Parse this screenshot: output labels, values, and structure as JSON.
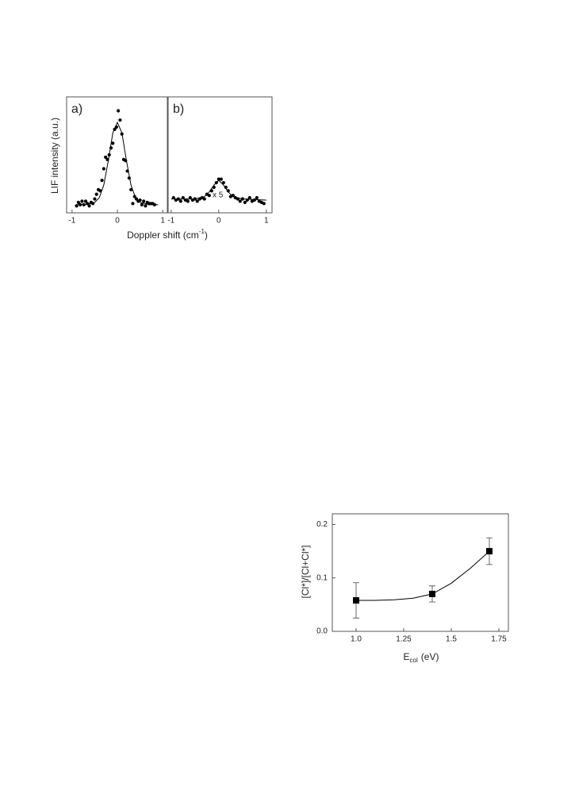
{
  "chart_data": [
    {
      "type": "scatter",
      "panel_label": "a)",
      "ylabel": "LIF intensity (a.u.)",
      "xlabel": [
        "Doppler shift (cm",
        "-1",
        ")"
      ],
      "xlim": [
        -1.12,
        1.12
      ],
      "ylim": [
        0,
        1
      ],
      "xticks": [
        -1,
        0,
        1
      ],
      "series": [
        {
          "style": "points",
          "marker": "circle",
          "color": "#000000",
          "x": [
            -0.9,
            -0.86,
            -0.82,
            -0.78,
            -0.74,
            -0.7,
            -0.66,
            -0.62,
            -0.58,
            -0.54,
            -0.5,
            -0.46,
            -0.42,
            -0.38,
            -0.34,
            -0.3,
            -0.26,
            -0.22,
            -0.18,
            -0.14,
            -0.1,
            -0.06,
            -0.02,
            0.02,
            0.06,
            0.1,
            0.14,
            0.18,
            0.22,
            0.26,
            0.3,
            0.34,
            0.38,
            0.42,
            0.46,
            0.5,
            0.54,
            0.58,
            0.62,
            0.66,
            0.7,
            0.74,
            0.78,
            0.82
          ],
          "values": [
            0.06,
            0.09,
            0.07,
            0.1,
            0.07,
            0.1,
            0.08,
            0.06,
            0.09,
            0.08,
            0.12,
            0.16,
            0.2,
            0.19,
            0.28,
            0.38,
            0.48,
            0.46,
            0.5,
            0.56,
            0.6,
            0.72,
            0.74,
            0.88,
            0.8,
            0.68,
            0.46,
            0.45,
            0.36,
            0.3,
            0.2,
            0.08,
            0.14,
            0.12,
            0.1,
            0.11,
            0.07,
            0.1,
            0.06,
            0.09,
            0.08,
            0.08,
            0.08,
            0.07
          ]
        },
        {
          "style": "line",
          "color": "#000000",
          "x": [
            -0.9,
            -0.7,
            -0.5,
            -0.4,
            -0.3,
            -0.2,
            -0.1,
            0,
            0.1,
            0.2,
            0.3,
            0.4,
            0.5,
            0.7,
            0.9
          ],
          "values": [
            0.07,
            0.07,
            0.09,
            0.13,
            0.24,
            0.45,
            0.69,
            0.78,
            0.69,
            0.45,
            0.24,
            0.13,
            0.09,
            0.07,
            0.07
          ]
        }
      ]
    },
    {
      "type": "scatter",
      "panel_label": "b)",
      "annotation": "x 5",
      "xlim": [
        -1.08,
        1.12
      ],
      "ylim": [
        0,
        1
      ],
      "xticks": [
        -1,
        0,
        1
      ],
      "series": [
        {
          "style": "points",
          "marker": "circle",
          "color": "#000000",
          "x": [
            -0.95,
            -0.9,
            -0.85,
            -0.8,
            -0.75,
            -0.7,
            -0.65,
            -0.6,
            -0.55,
            -0.5,
            -0.45,
            -0.4,
            -0.35,
            -0.3,
            -0.25,
            -0.2,
            -0.15,
            -0.1,
            -0.05,
            0,
            0.05,
            0.1,
            0.15,
            0.2,
            0.25,
            0.3,
            0.35,
            0.4,
            0.45,
            0.5,
            0.55,
            0.6,
            0.65,
            0.7,
            0.75,
            0.8,
            0.85,
            0.9,
            0.95
          ],
          "values": [
            0.13,
            0.11,
            0.12,
            0.1,
            0.13,
            0.11,
            0.1,
            0.13,
            0.11,
            0.12,
            0.1,
            0.12,
            0.13,
            0.12,
            0.16,
            0.15,
            0.19,
            0.22,
            0.26,
            0.29,
            0.29,
            0.26,
            0.22,
            0.19,
            0.14,
            0.15,
            0.13,
            0.12,
            0.1,
            0.12,
            0.09,
            0.11,
            0.13,
            0.1,
            0.11,
            0.13,
            0.1,
            0.09,
            0.08
          ]
        },
        {
          "style": "line",
          "color": "#000000",
          "x": [
            -1,
            -0.5,
            -0.3,
            -0.2,
            -0.1,
            0,
            0.1,
            0.2,
            0.3,
            0.5,
            1
          ],
          "values": [
            0.12,
            0.12,
            0.14,
            0.18,
            0.24,
            0.28,
            0.24,
            0.18,
            0.14,
            0.12,
            0.11
          ]
        }
      ]
    },
    {
      "type": "scatter",
      "ylabel": "[Cl*]/[Cl+Cl*]",
      "xlabel": [
        "E",
        "col",
        "(eV)"
      ],
      "xlim": [
        0.875,
        1.8
      ],
      "ylim": [
        0,
        0.22
      ],
      "xticks": [
        {
          "value": 1,
          "label": "1.0"
        },
        1.25,
        1.5,
        1.75
      ],
      "yticks": [
        {
          "value": 0,
          "label": "0.0"
        },
        0.1,
        0.2
      ],
      "series": [
        {
          "style": "points",
          "marker": "square",
          "color": "#000000",
          "x": [
            1.0,
            1.4,
            1.7
          ],
          "values": [
            0.058,
            0.07,
            0.15
          ],
          "errors": [
            0.033,
            0.015,
            0.025
          ]
        },
        {
          "style": "line",
          "color": "#000000",
          "x": [
            1.0,
            1.1,
            1.2,
            1.3,
            1.4,
            1.5,
            1.6,
            1.7
          ],
          "values": [
            0.058,
            0.058,
            0.059,
            0.062,
            0.07,
            0.09,
            0.118,
            0.15
          ]
        }
      ]
    }
  ]
}
